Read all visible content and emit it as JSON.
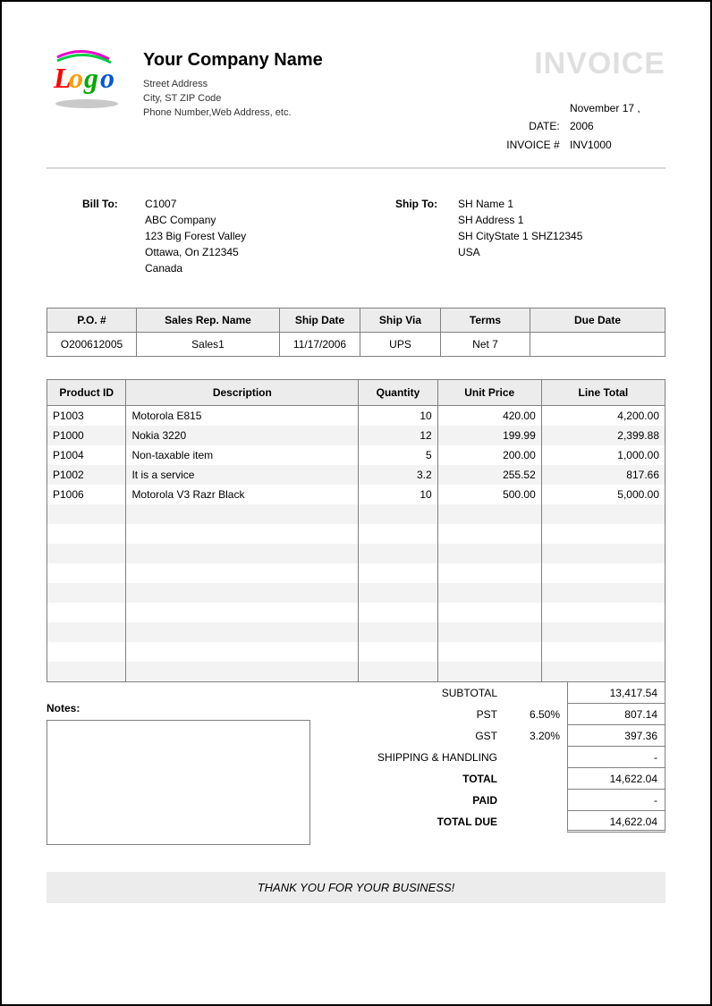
{
  "company": {
    "name": "Your Company Name",
    "line1": "Street Address",
    "line2": "City, ST  ZIP Code",
    "line3": "Phone Number,Web Address, etc."
  },
  "invoice": {
    "title": "INVOICE",
    "date_label": "DATE:",
    "date": "November 17 , 2006",
    "number_label": "INVOICE #",
    "number": "INV1000"
  },
  "bill_to": {
    "label": "Bill To:",
    "line1": "C1007",
    "line2": "ABC Company",
    "line3": "123 Big Forest Valley",
    "line4": "Ottawa, On Z12345",
    "line5": "Canada"
  },
  "ship_to": {
    "label": "Ship To:",
    "line1": "SH Name 1",
    "line2": "SH Address 1",
    "line3": "SH CityState 1 SHZ12345",
    "line4": "USA"
  },
  "order_table": {
    "headers": {
      "po": "P.O. #",
      "rep": "Sales Rep. Name",
      "ship_date": "Ship Date",
      "ship_via": "Ship Via",
      "terms": "Terms",
      "due": "Due Date"
    },
    "row": {
      "po": "O200612005",
      "rep": "Sales1",
      "ship_date": "11/17/2006",
      "ship_via": "UPS",
      "terms": "Net 7",
      "due": ""
    }
  },
  "items_table": {
    "headers": {
      "pid": "Product ID",
      "desc": "Description",
      "qty": "Quantity",
      "price": "Unit Price",
      "total": "Line Total"
    },
    "rows": [
      {
        "pid": "P1003",
        "desc": "Motorola E815",
        "qty": "10",
        "price": "420.00",
        "total": "4,200.00"
      },
      {
        "pid": "P1000",
        "desc": "Nokia 3220",
        "qty": "12",
        "price": "199.99",
        "total": "2,399.88"
      },
      {
        "pid": "P1004",
        "desc": "Non-taxable  item",
        "qty": "5",
        "price": "200.00",
        "total": "1,000.00"
      },
      {
        "pid": "P1002",
        "desc": "It is a service",
        "qty": "3.2",
        "price": "255.52",
        "total": "817.66"
      },
      {
        "pid": "P1006",
        "desc": "Motorola V3 Razr Black",
        "qty": "10",
        "price": "500.00",
        "total": "5,000.00"
      }
    ],
    "empty_rows": 9
  },
  "notes_label": "Notes:",
  "totals": {
    "subtotal_label": "SUBTOTAL",
    "subtotal": "13,417.54",
    "pst_label": "PST",
    "pst_pct": "6.50%",
    "pst": "807.14",
    "gst_label": "GST",
    "gst_pct": "3.20%",
    "gst": "397.36",
    "ship_label": "SHIPPING & HANDLING",
    "ship": "-",
    "total_label": "TOTAL",
    "total": "14,622.04",
    "paid_label": "PAID",
    "paid": "-",
    "due_label": "TOTAL DUE",
    "due": "14,622.04"
  },
  "thanks": "THANK YOU FOR YOUR BUSINESS!",
  "colors": {
    "header_bg": "#ececec",
    "border": "#808080",
    "alt_row": "#f3f3f3",
    "title_gray": "#dfdfdf"
  }
}
